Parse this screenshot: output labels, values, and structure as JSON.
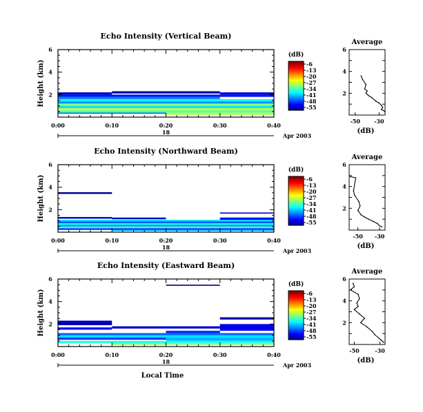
{
  "chart_data": [
    {
      "type": "heatmap",
      "title": "Echo Intensity (Vertical Beam)",
      "ylabel": "Height (km)",
      "yticks": [
        "6",
        "4",
        "2"
      ],
      "ylim": [
        0,
        6
      ],
      "xticks": [
        "0:00",
        "0:10",
        "0:20",
        "0:30",
        "0:40"
      ],
      "xlim_minutes": [
        0,
        40
      ],
      "day_label": "18",
      "date_label": "Apr 2003",
      "colorbar": {
        "label": "(dB)",
        "ticks": [
          "-6",
          "-13",
          "-20",
          "-27",
          "-34",
          "-41",
          "-48",
          "-55"
        ]
      },
      "bands": [
        {
          "t0": 0,
          "t1": 10,
          "h0": 2.0,
          "h1": 2.2,
          "db": -52
        },
        {
          "t0": 10,
          "t1": 30,
          "h0": 2.1,
          "h1": 2.3,
          "db": -53
        },
        {
          "t0": 30,
          "t1": 40,
          "h0": 2.0,
          "h1": 2.2,
          "db": -51
        },
        {
          "t0": 0,
          "t1": 40,
          "h0": 1.8,
          "h1": 2.0,
          "db": -48
        },
        {
          "t0": 0,
          "t1": 30,
          "h0": 1.6,
          "h1": 1.8,
          "db": -43
        },
        {
          "t0": 0,
          "t1": 40,
          "h0": 1.4,
          "h1": 1.6,
          "db": -36
        },
        {
          "t0": 0,
          "t1": 40,
          "h0": 1.2,
          "h1": 1.4,
          "db": -42
        },
        {
          "t0": 0,
          "t1": 40,
          "h0": 1.0,
          "h1": 1.2,
          "db": -30
        },
        {
          "t0": 0,
          "t1": 40,
          "h0": 0.8,
          "h1": 1.0,
          "db": -38
        },
        {
          "t0": 0,
          "t1": 40,
          "h0": 0.6,
          "h1": 0.8,
          "db": -27
        },
        {
          "t0": 0,
          "t1": 40,
          "h0": 0.4,
          "h1": 0.6,
          "db": -33
        },
        {
          "t0": 0,
          "t1": 20,
          "h0": 0.3,
          "h1": 0.4,
          "db": -44
        },
        {
          "t0": 20,
          "t1": 40,
          "h0": 0.2,
          "h1": 0.4,
          "db": -28
        }
      ],
      "profile": {
        "title": "Average",
        "xlabel": "(dB)",
        "xticks": [
          "-50",
          "-30"
        ],
        "xlim": [
          -55,
          -25
        ],
        "yticks": [
          "6",
          "4",
          "2"
        ],
        "ylim": [
          0,
          6
        ],
        "points": [
          [
            -45,
            3.6
          ],
          [
            -44,
            3.3
          ],
          [
            -41,
            2.8
          ],
          [
            -42,
            2.4
          ],
          [
            -40,
            2.2
          ],
          [
            -41,
            2.0
          ],
          [
            -39,
            1.8
          ],
          [
            -36,
            1.6
          ],
          [
            -33,
            1.3
          ],
          [
            -30,
            1.1
          ],
          [
            -28,
            0.9
          ],
          [
            -27,
            0.7
          ],
          [
            -28,
            0.5
          ],
          [
            -26,
            0.4
          ],
          [
            -25,
            0.3
          ]
        ]
      }
    },
    {
      "type": "heatmap",
      "title": "Echo Intensity (Northward Beam)",
      "ylabel": "Height (km)",
      "yticks": [
        "6",
        "4",
        "2"
      ],
      "ylim": [
        0,
        6
      ],
      "xticks": [
        "0:00",
        "0:10",
        "0:20",
        "0:30",
        "0:40"
      ],
      "xlim_minutes": [
        0,
        40
      ],
      "day_label": "18",
      "date_label": "Apr 2003",
      "colorbar": {
        "label": "(dB)",
        "ticks": [
          "-6",
          "-13",
          "-20",
          "-27",
          "-34",
          "-41",
          "-48",
          "-55"
        ]
      },
      "bands": [
        {
          "t0": 0,
          "t1": 10,
          "h0": 3.4,
          "h1": 3.55,
          "db": -54
        },
        {
          "t0": 30,
          "t1": 40,
          "h0": 1.65,
          "h1": 1.75,
          "db": -52
        },
        {
          "t0": 0,
          "t1": 10,
          "h0": 1.2,
          "h1": 1.35,
          "db": -50
        },
        {
          "t0": 10,
          "t1": 20,
          "h0": 1.15,
          "h1": 1.3,
          "db": -51
        },
        {
          "t0": 30,
          "t1": 40,
          "h0": 1.1,
          "h1": 1.3,
          "db": -48
        },
        {
          "t0": 0,
          "t1": 40,
          "h0": 0.95,
          "h1": 1.1,
          "db": -38
        },
        {
          "t0": 0,
          "t1": 40,
          "h0": 0.8,
          "h1": 0.95,
          "db": -45
        },
        {
          "t0": 0,
          "t1": 40,
          "h0": 0.65,
          "h1": 0.8,
          "db": -36
        },
        {
          "t0": 0,
          "t1": 40,
          "h0": 0.5,
          "h1": 0.65,
          "db": -42
        },
        {
          "t0": 0,
          "t1": 40,
          "h0": 0.35,
          "h1": 0.5,
          "db": -34
        },
        {
          "t0": 0,
          "t1": 40,
          "h0": 0.2,
          "h1": 0.35,
          "db": -46
        },
        {
          "t0": 10,
          "t1": 40,
          "h0": 0.1,
          "h1": 0.2,
          "db": -40
        }
      ],
      "profile": {
        "title": "Average",
        "xlabel": "(dB)",
        "xticks": [
          "-50",
          "-30"
        ],
        "xlim": [
          -58,
          -25
        ],
        "yticks": [
          "6",
          "4",
          "2"
        ],
        "ylim": [
          0,
          6
        ],
        "points": [
          [
            -57,
            4.9
          ],
          [
            -52,
            4.8
          ],
          [
            -54,
            3.6
          ],
          [
            -53,
            3.2
          ],
          [
            -49,
            2.6
          ],
          [
            -48,
            2.2
          ],
          [
            -50,
            1.8
          ],
          [
            -47,
            1.4
          ],
          [
            -44,
            1.2
          ],
          [
            -40,
            1.0
          ],
          [
            -36,
            0.8
          ],
          [
            -32,
            0.6
          ],
          [
            -30,
            0.4
          ],
          [
            -28,
            0.3
          ]
        ]
      }
    },
    {
      "type": "heatmap",
      "title": "Echo Intensity (Eastward Beam)",
      "ylabel": "Height (km)",
      "yticks": [
        "6",
        "4",
        "2"
      ],
      "ylim": [
        0,
        6
      ],
      "xticks": [
        "0:00",
        "0:10",
        "0:20",
        "0:30",
        "0:40"
      ],
      "xlim_minutes": [
        0,
        40
      ],
      "day_label": "18",
      "date_label": "Apr 2003",
      "xlabel": "Local Time",
      "colorbar": {
        "label": "(dB)",
        "ticks": [
          "-6",
          "-13",
          "-20",
          "-27",
          "-34",
          "-41",
          "-48",
          "-55"
        ]
      },
      "bands": [
        {
          "t0": 20,
          "t1": 30,
          "h0": 5.4,
          "h1": 5.5,
          "db": -54
        },
        {
          "t0": 30,
          "t1": 40,
          "h0": 2.4,
          "h1": 2.6,
          "db": -53
        },
        {
          "t0": 0,
          "t1": 10,
          "h0": 1.9,
          "h1": 2.3,
          "db": -52
        },
        {
          "t0": 10,
          "t1": 30,
          "h0": 1.6,
          "h1": 1.8,
          "db": -51
        },
        {
          "t0": 30,
          "t1": 40,
          "h0": 1.4,
          "h1": 2.0,
          "db": -50
        },
        {
          "t0": 0,
          "t1": 10,
          "h0": 1.5,
          "h1": 1.7,
          "db": -49
        },
        {
          "t0": 20,
          "t1": 30,
          "h0": 1.2,
          "h1": 1.4,
          "db": -47
        },
        {
          "t0": 0,
          "t1": 40,
          "h0": 1.0,
          "h1": 1.2,
          "db": -44
        },
        {
          "t0": 0,
          "t1": 40,
          "h0": 0.8,
          "h1": 1.0,
          "db": -38
        },
        {
          "t0": 0,
          "t1": 20,
          "h0": 0.6,
          "h1": 0.8,
          "db": -46
        },
        {
          "t0": 20,
          "t1": 40,
          "h0": 0.5,
          "h1": 0.8,
          "db": -40
        },
        {
          "t0": 0,
          "t1": 40,
          "h0": 0.3,
          "h1": 0.5,
          "db": -35
        },
        {
          "t0": 10,
          "t1": 40,
          "h0": 0.15,
          "h1": 0.3,
          "db": -30
        }
      ],
      "profile": {
        "title": "Average",
        "xlabel": "(dB)",
        "xticks": [
          "-50",
          "-30"
        ],
        "xlim": [
          -54,
          -26
        ],
        "yticks": [
          "6",
          "4",
          "2"
        ],
        "ylim": [
          0,
          6
        ],
        "points": [
          [
            -51,
            5.6
          ],
          [
            -50,
            5.3
          ],
          [
            -53,
            5.0
          ],
          [
            -47,
            4.6
          ],
          [
            -46,
            4.2
          ],
          [
            -48,
            3.8
          ],
          [
            -47,
            3.5
          ],
          [
            -50,
            3.2
          ],
          [
            -46,
            2.8
          ],
          [
            -42,
            2.4
          ],
          [
            -45,
            2.0
          ],
          [
            -40,
            1.6
          ],
          [
            -36,
            1.2
          ],
          [
            -34,
            0.9
          ],
          [
            -31,
            0.6
          ],
          [
            -29,
            0.4
          ],
          [
            -27,
            0.2
          ]
        ]
      }
    }
  ]
}
